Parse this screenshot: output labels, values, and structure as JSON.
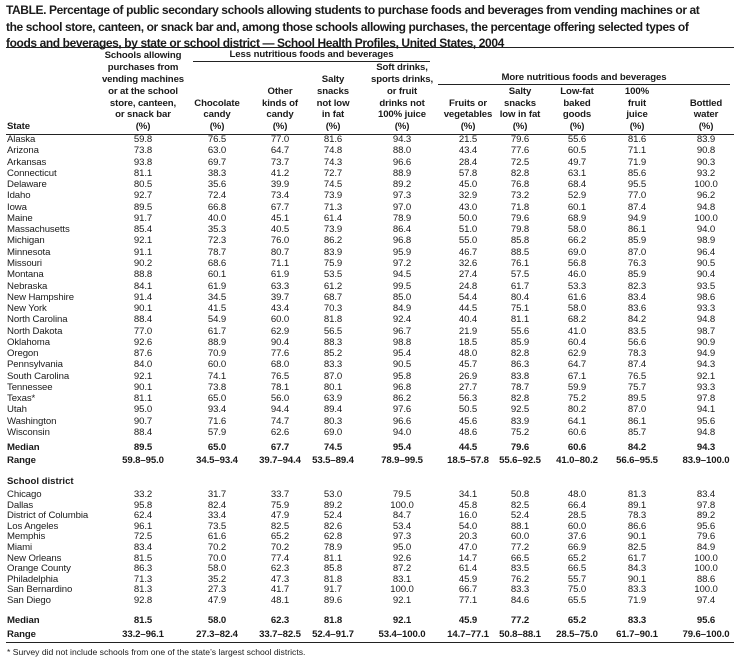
{
  "title_lines": [
    "TABLE. Percentage of public secondary schools allowing students to purchase foods and beverages from vending machines or at",
    "the school store, canteen, or snack bar and, among those schools allowing purchases, the percentage offering selected types of",
    "foods and beverages, by state or school district — School Health Profiles, United States, 2004"
  ],
  "groups": {
    "less": "Less nutritious foods and beverages",
    "more": "More nutritious foods and beverages"
  },
  "header": {
    "state_label": "State",
    "columns": [
      {
        "lines": [
          "Schools allowing",
          "purchases from",
          "vending machines",
          "or at the school",
          "store, canteen,",
          "or snack bar"
        ],
        "unit": "(%)"
      },
      {
        "lines": [
          "Chocolate",
          "candy"
        ],
        "unit": "(%)"
      },
      {
        "lines": [
          "Other",
          "kinds of",
          "candy"
        ],
        "unit": "(%)"
      },
      {
        "lines": [
          "Salty",
          "snacks",
          "not low",
          "in fat"
        ],
        "unit": "(%)"
      },
      {
        "lines": [
          "Soft drinks,",
          "sports drinks,",
          "or fruit",
          "drinks not",
          "100% juice"
        ],
        "unit": "(%)"
      },
      {
        "lines": [
          "Fruits or",
          "vegetables"
        ],
        "unit": "(%)"
      },
      {
        "lines": [
          "Salty",
          "snacks",
          "low in fat"
        ],
        "unit": "(%)"
      },
      {
        "lines": [
          "Low-fat",
          "baked",
          "goods"
        ],
        "unit": "(%)"
      },
      {
        "lines": [
          "100%",
          "fruit",
          "juice"
        ],
        "unit": "(%)"
      },
      {
        "lines": [
          "Bottled",
          "water"
        ],
        "unit": "(%)"
      }
    ]
  },
  "states": [
    {
      "name": "Alaska",
      "values": [
        "59.8",
        "76.5",
        "77.0",
        "81.6",
        "94.3",
        "21.5",
        "79.6",
        "55.6",
        "81.6",
        "83.9"
      ]
    },
    {
      "name": "Arizona",
      "values": [
        "73.8",
        "63.0",
        "64.7",
        "74.8",
        "88.0",
        "43.4",
        "77.6",
        "60.5",
        "71.1",
        "90.8"
      ]
    },
    {
      "name": "Arkansas",
      "values": [
        "93.8",
        "69.7",
        "73.7",
        "74.3",
        "96.6",
        "28.4",
        "72.5",
        "49.7",
        "71.9",
        "90.3"
      ]
    },
    {
      "name": "Connecticut",
      "values": [
        "81.1",
        "38.3",
        "41.2",
        "72.7",
        "88.9",
        "57.8",
        "82.8",
        "63.1",
        "85.6",
        "93.2"
      ]
    },
    {
      "name": "Delaware",
      "values": [
        "80.5",
        "35.6",
        "39.9",
        "74.5",
        "89.2",
        "45.0",
        "76.8",
        "68.4",
        "95.5",
        "100.0"
      ]
    },
    {
      "name": "Idaho",
      "values": [
        "92.7",
        "72.4",
        "73.4",
        "73.9",
        "97.3",
        "32.9",
        "73.2",
        "52.9",
        "77.0",
        "96.2"
      ]
    },
    {
      "name": "Iowa",
      "values": [
        "89.5",
        "66.8",
        "67.7",
        "71.3",
        "97.0",
        "43.0",
        "71.8",
        "60.1",
        "87.4",
        "94.8"
      ]
    },
    {
      "name": "Maine",
      "values": [
        "91.7",
        "40.0",
        "45.1",
        "61.4",
        "78.9",
        "50.0",
        "79.6",
        "68.9",
        "94.9",
        "100.0"
      ]
    },
    {
      "name": "Massachusetts",
      "values": [
        "85.4",
        "35.3",
        "40.5",
        "73.9",
        "86.4",
        "51.0",
        "79.8",
        "58.0",
        "86.1",
        "94.0"
      ]
    },
    {
      "name": "Michigan",
      "values": [
        "92.1",
        "72.3",
        "76.0",
        "86.2",
        "96.8",
        "55.0",
        "85.8",
        "66.2",
        "85.9",
        "98.9"
      ]
    },
    {
      "name": "Minnesota",
      "values": [
        "91.1",
        "78.7",
        "80.7",
        "83.9",
        "95.9",
        "46.7",
        "88.5",
        "69.0",
        "87.0",
        "96.4"
      ]
    },
    {
      "name": "Missouri",
      "values": [
        "90.2",
        "68.6",
        "71.1",
        "75.9",
        "97.2",
        "32.6",
        "76.1",
        "56.8",
        "76.3",
        "90.5"
      ]
    },
    {
      "name": "Montana",
      "values": [
        "88.8",
        "60.1",
        "61.9",
        "53.5",
        "94.5",
        "27.4",
        "57.5",
        "46.0",
        "85.9",
        "90.4"
      ]
    },
    {
      "name": "Nebraska",
      "values": [
        "84.1",
        "61.9",
        "63.3",
        "61.2",
        "99.5",
        "24.8",
        "61.7",
        "53.3",
        "82.3",
        "93.5"
      ]
    },
    {
      "name": "New Hampshire",
      "values": [
        "91.4",
        "34.5",
        "39.7",
        "68.7",
        "85.0",
        "54.4",
        "80.4",
        "61.6",
        "83.4",
        "98.6"
      ]
    },
    {
      "name": "New York",
      "values": [
        "90.1",
        "41.5",
        "43.4",
        "70.3",
        "84.9",
        "44.5",
        "75.1",
        "58.0",
        "83.6",
        "93.3"
      ]
    },
    {
      "name": "North Carolina",
      "values": [
        "88.4",
        "54.9",
        "60.0",
        "81.8",
        "92.4",
        "40.4",
        "81.1",
        "68.2",
        "84.2",
        "94.8"
      ]
    },
    {
      "name": "North Dakota",
      "values": [
        "77.0",
        "61.7",
        "62.9",
        "56.5",
        "96.7",
        "21.9",
        "55.6",
        "41.0",
        "83.5",
        "98.7"
      ]
    },
    {
      "name": "Oklahoma",
      "values": [
        "92.6",
        "88.9",
        "90.4",
        "88.3",
        "98.8",
        "18.5",
        "85.9",
        "60.4",
        "56.6",
        "90.9"
      ]
    },
    {
      "name": "Oregon",
      "values": [
        "87.6",
        "70.9",
        "77.6",
        "85.2",
        "95.4",
        "48.0",
        "82.8",
        "62.9",
        "78.3",
        "94.9"
      ]
    },
    {
      "name": "Pennsylvania",
      "values": [
        "84.0",
        "60.0",
        "68.0",
        "83.3",
        "90.5",
        "45.7",
        "86.3",
        "64.7",
        "87.4",
        "94.3"
      ]
    },
    {
      "name": "South Carolina",
      "values": [
        "92.1",
        "74.1",
        "76.5",
        "87.0",
        "95.8",
        "26.9",
        "83.8",
        "67.1",
        "76.5",
        "92.1"
      ]
    },
    {
      "name": "Tennessee",
      "values": [
        "90.1",
        "73.8",
        "78.1",
        "80.1",
        "96.8",
        "27.7",
        "78.7",
        "59.9",
        "75.7",
        "93.3"
      ]
    },
    {
      "name": "Texas*",
      "values": [
        "81.1",
        "65.0",
        "56.0",
        "63.9",
        "86.2",
        "56.3",
        "82.8",
        "75.2",
        "89.5",
        "97.8"
      ]
    },
    {
      "name": "Utah",
      "values": [
        "95.0",
        "93.4",
        "94.4",
        "89.4",
        "97.6",
        "50.5",
        "92.5",
        "80.2",
        "87.0",
        "94.1"
      ]
    },
    {
      "name": "Washington",
      "values": [
        "90.7",
        "71.6",
        "74.7",
        "80.3",
        "96.6",
        "45.6",
        "83.9",
        "64.1",
        "86.1",
        "95.6"
      ]
    },
    {
      "name": "Wisconsin",
      "values": [
        "88.4",
        "57.9",
        "62.6",
        "69.0",
        "94.0",
        "48.6",
        "75.2",
        "60.6",
        "85.7",
        "94.8"
      ]
    }
  ],
  "state_summary": [
    {
      "name": "Median",
      "values": [
        "89.5",
        "65.0",
        "67.7",
        "74.5",
        "95.4",
        "44.5",
        "79.6",
        "60.6",
        "84.2",
        "94.3"
      ]
    },
    {
      "name": "Range",
      "values": [
        "59.8–95.0",
        "34.5–93.4",
        "39.7–94.4",
        "53.5–89.4",
        "78.9–99.5",
        "18.5–57.8",
        "55.6–92.5",
        "41.0–80.2",
        "56.6–95.5",
        "83.9–100.0"
      ]
    }
  ],
  "district_label": "School district",
  "districts": [
    {
      "name": "Chicago",
      "values": [
        "33.2",
        "31.7",
        "33.7",
        "53.0",
        "79.5",
        "34.1",
        "50.8",
        "48.0",
        "81.3",
        "83.4"
      ]
    },
    {
      "name": "Dallas",
      "values": [
        "95.8",
        "82.4",
        "75.9",
        "89.2",
        "100.0",
        "45.8",
        "82.5",
        "66.4",
        "89.1",
        "97.8"
      ]
    },
    {
      "name": "District of Columbia",
      "values": [
        "62.4",
        "33.4",
        "47.9",
        "52.4",
        "84.7",
        "16.0",
        "52.4",
        "28.5",
        "78.3",
        "89.2"
      ]
    },
    {
      "name": "Los Angeles",
      "values": [
        "96.1",
        "73.5",
        "82.5",
        "82.6",
        "53.4",
        "54.0",
        "88.1",
        "60.0",
        "86.6",
        "95.6"
      ]
    },
    {
      "name": "Memphis",
      "values": [
        "72.5",
        "61.6",
        "65.2",
        "62.8",
        "97.3",
        "20.3",
        "60.0",
        "37.6",
        "90.1",
        "79.6"
      ]
    },
    {
      "name": "Miami",
      "values": [
        "83.4",
        "70.2",
        "70.2",
        "78.9",
        "95.0",
        "47.0",
        "77.2",
        "66.9",
        "82.5",
        "84.9"
      ]
    },
    {
      "name": "New Orleans",
      "values": [
        "81.5",
        "70.0",
        "77.4",
        "81.1",
        "92.6",
        "14.7",
        "66.5",
        "65.2",
        "61.7",
        "100.0"
      ]
    },
    {
      "name": "Orange County",
      "values": [
        "86.3",
        "58.0",
        "62.3",
        "85.8",
        "87.2",
        "61.4",
        "83.5",
        "66.5",
        "84.3",
        "100.0"
      ]
    },
    {
      "name": "Philadelphia",
      "values": [
        "71.3",
        "35.2",
        "47.3",
        "81.8",
        "83.1",
        "45.9",
        "76.2",
        "55.7",
        "90.1",
        "88.6"
      ]
    },
    {
      "name": "San Bernardino",
      "values": [
        "81.3",
        "27.3",
        "41.7",
        "91.7",
        "100.0",
        "66.7",
        "83.3",
        "75.0",
        "83.3",
        "100.0"
      ]
    },
    {
      "name": "San Diego",
      "values": [
        "92.8",
        "47.9",
        "48.1",
        "89.6",
        "92.1",
        "77.1",
        "84.6",
        "65.5",
        "71.9",
        "97.4"
      ]
    }
  ],
  "district_summary": [
    {
      "name": "Median",
      "values": [
        "81.5",
        "58.0",
        "62.3",
        "81.8",
        "92.1",
        "45.9",
        "77.2",
        "65.2",
        "83.3",
        "95.6"
      ]
    },
    {
      "name": "Range",
      "values": [
        "33.2–96.1",
        "27.3–82.4",
        "33.7–82.5",
        "52.4–91.7",
        "53.4–100.0",
        "14.7–77.1",
        "50.8–88.1",
        "28.5–75.0",
        "61.7–90.1",
        "79.6–100.0"
      ]
    }
  ],
  "footnote": "* Survey did not include schools from one of the state’s largest school districts."
}
